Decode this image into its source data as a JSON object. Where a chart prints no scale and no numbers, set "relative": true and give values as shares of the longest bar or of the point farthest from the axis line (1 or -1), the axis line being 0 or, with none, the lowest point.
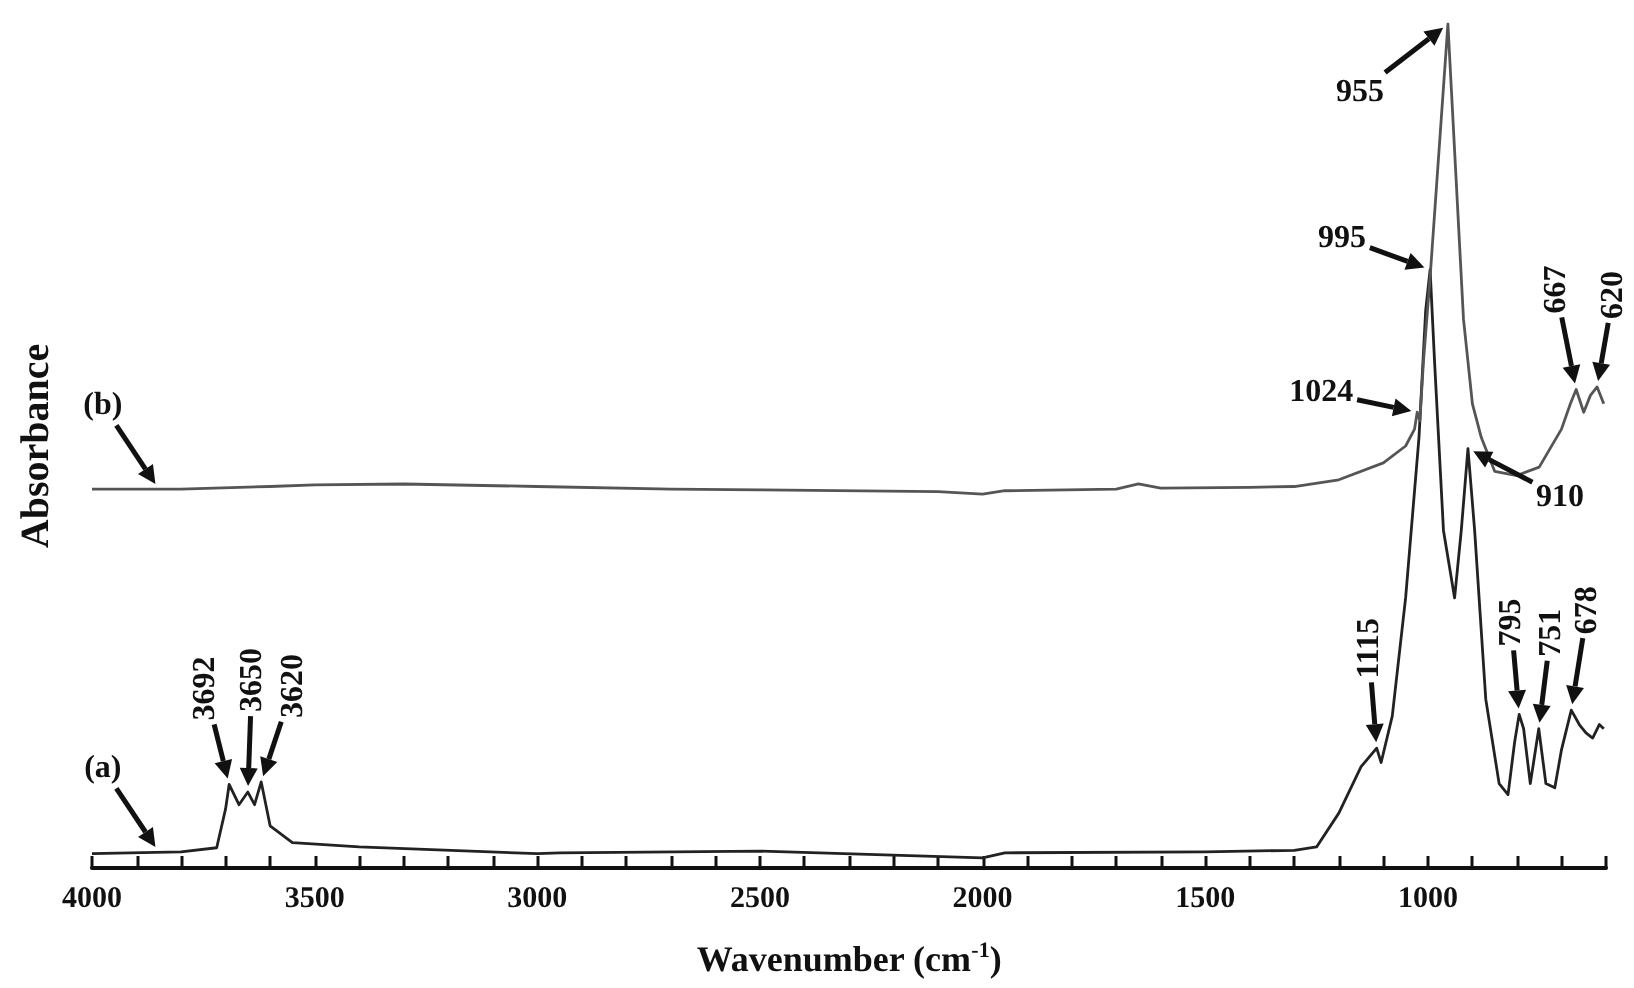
{
  "chart_data": {
    "type": "line",
    "relative": true,
    "xlabel": "Wavenumber (cm$^{-1}$)",
    "ylabel": "Absorbance",
    "xlim": [
      4000,
      600
    ],
    "xticks": [
      {
        "value": 4000,
        "label": "4000"
      },
      {
        "value": 3900,
        "label": null
      },
      {
        "value": 3800,
        "label": null
      },
      {
        "value": 3700,
        "label": null
      },
      {
        "value": 3600,
        "label": null
      },
      {
        "value": 3500,
        "label": "3500"
      },
      {
        "value": 3400,
        "label": null
      },
      {
        "value": 3300,
        "label": null
      },
      {
        "value": 3200,
        "label": null
      },
      {
        "value": 3100,
        "label": null
      },
      {
        "value": 3000,
        "label": "3000"
      },
      {
        "value": 2900,
        "label": null
      },
      {
        "value": 2800,
        "label": null
      },
      {
        "value": 2700,
        "label": null
      },
      {
        "value": 2600,
        "label": null
      },
      {
        "value": 2500,
        "label": "2500"
      },
      {
        "value": 2400,
        "label": null
      },
      {
        "value": 2300,
        "label": null
      },
      {
        "value": 2200,
        "label": null
      },
      {
        "value": 2100,
        "label": null
      },
      {
        "value": 2000,
        "label": "2000"
      },
      {
        "value": 1900,
        "label": null
      },
      {
        "value": 1800,
        "label": null
      },
      {
        "value": 1700,
        "label": null
      },
      {
        "value": 1600,
        "label": null
      },
      {
        "value": 1500,
        "label": "1500"
      },
      {
        "value": 1400,
        "label": null
      },
      {
        "value": 1300,
        "label": null
      },
      {
        "value": 1200,
        "label": null
      },
      {
        "value": 1100,
        "label": null
      },
      {
        "value": 1000,
        "label": "1000"
      },
      {
        "value": 900,
        "label": null
      },
      {
        "value": 800,
        "label": null
      },
      {
        "value": 700,
        "label": null
      },
      {
        "value": 600,
        "label": null
      }
    ],
    "grid": false,
    "marker": "none",
    "line_style": "solid",
    "series": [
      {
        "color": "#222222",
        "x": [
          4000,
          3800,
          3720,
          3700,
          3692,
          3670,
          3650,
          3635,
          3620,
          3600,
          3550,
          3400,
          3000,
          2950,
          2500,
          2000,
          1950,
          1500,
          1300,
          1250,
          1200,
          1150,
          1115,
          1105,
          1080,
          1050,
          1020,
          1005,
          995,
          985,
          965,
          940,
          925,
          910,
          895,
          870,
          840,
          820,
          805,
          795,
          785,
          770,
          751,
          735,
          715,
          700,
          678,
          660,
          645,
          630,
          615,
          605
        ],
        "values": [
          0.017,
          0.019,
          0.024,
          0.07,
          0.099,
          0.075,
          0.09,
          0.075,
          0.102,
          0.05,
          0.03,
          0.025,
          0.017,
          0.018,
          0.02,
          0.012,
          0.018,
          0.019,
          0.021,
          0.025,
          0.065,
          0.12,
          0.142,
          0.125,
          0.18,
          0.32,
          0.51,
          0.66,
          0.709,
          0.6,
          0.4,
          0.32,
          0.4,
          0.497,
          0.4,
          0.2,
          0.1,
          0.087,
          0.15,
          0.182,
          0.165,
          0.1,
          0.165,
          0.1,
          0.095,
          0.14,
          0.187,
          0.17,
          0.16,
          0.154,
          0.17,
          0.165
        ]
      },
      {
        "color": "#555555",
        "x": [
          4000,
          3800,
          3600,
          3500,
          3300,
          3000,
          2700,
          2500,
          2100,
          2000,
          1950,
          1700,
          1650,
          1600,
          1400,
          1300,
          1200,
          1100,
          1050,
          1030,
          1024,
          1018,
          1010,
          995,
          975,
          955,
          940,
          920,
          900,
          880,
          850,
          800,
          750,
          700,
          680,
          667,
          650,
          635,
          620,
          605
        ],
        "values": [
          0.449,
          0.449,
          0.452,
          0.454,
          0.455,
          0.452,
          0.449,
          0.448,
          0.446,
          0.443,
          0.447,
          0.449,
          0.455,
          0.45,
          0.451,
          0.452,
          0.46,
          0.48,
          0.5,
          0.52,
          0.54,
          0.53,
          0.6,
          0.7,
          0.85,
          1.0,
          0.85,
          0.65,
          0.55,
          0.51,
          0.47,
          0.465,
          0.475,
          0.52,
          0.55,
          0.567,
          0.54,
          0.56,
          0.57,
          0.55
        ]
      }
    ],
    "annotations": [
      {
        "text": "(a)",
        "x": 3850,
        "y": 0.019
      },
      {
        "text": "(b)",
        "x": 3850,
        "y": 0.449
      },
      {
        "text": "3692",
        "x": 3692,
        "y": 0.099
      },
      {
        "text": "3650",
        "x": 3650,
        "y": 0.09
      },
      {
        "text": "3620",
        "x": 3620,
        "y": 0.102
      },
      {
        "text": "1115",
        "x": 1115,
        "y": 0.142
      },
      {
        "text": "1024",
        "x": 1024,
        "y": 0.54
      },
      {
        "text": "995",
        "x": 995,
        "y": 0.709
      },
      {
        "text": "955",
        "x": 955,
        "y": 1.0
      },
      {
        "text": "910",
        "x": 910,
        "y": 0.497
      },
      {
        "text": "795",
        "x": 795,
        "y": 0.182
      },
      {
        "text": "751",
        "x": 751,
        "y": 0.165
      },
      {
        "text": "678",
        "x": 678,
        "y": 0.187
      },
      {
        "text": "667",
        "x": 667,
        "y": 0.567
      },
      {
        "text": "620",
        "x": 620,
        "y": 0.57
      }
    ]
  }
}
